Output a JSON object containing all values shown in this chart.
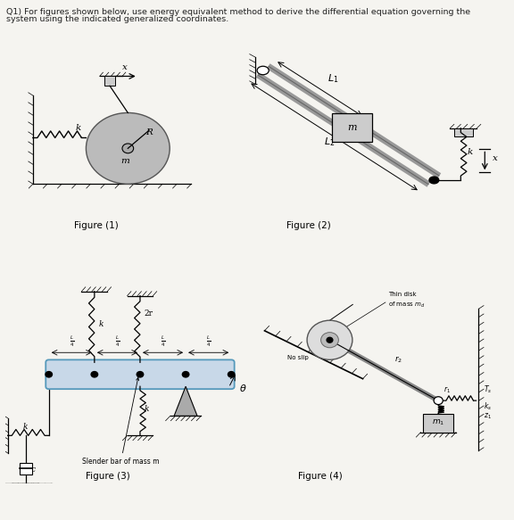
{
  "title_line1": "Q1) For figures shown below, use energy equivalent method to derive the differential equation governing the",
  "title_line2": "system using the indicated generalized coordinates.",
  "fig1_caption": "Figure (1)",
  "fig2_caption": "Figure (2)",
  "fig3_caption": "Figure (3)",
  "fig4_caption": "Figure (4)",
  "bg_color": "#f5f4f0",
  "text_color": "#222222",
  "line_color": "#333333",
  "gray_fill": "#bbbbbb",
  "light_gray": "#dddddd",
  "blue_bar": "#c8d8e8"
}
